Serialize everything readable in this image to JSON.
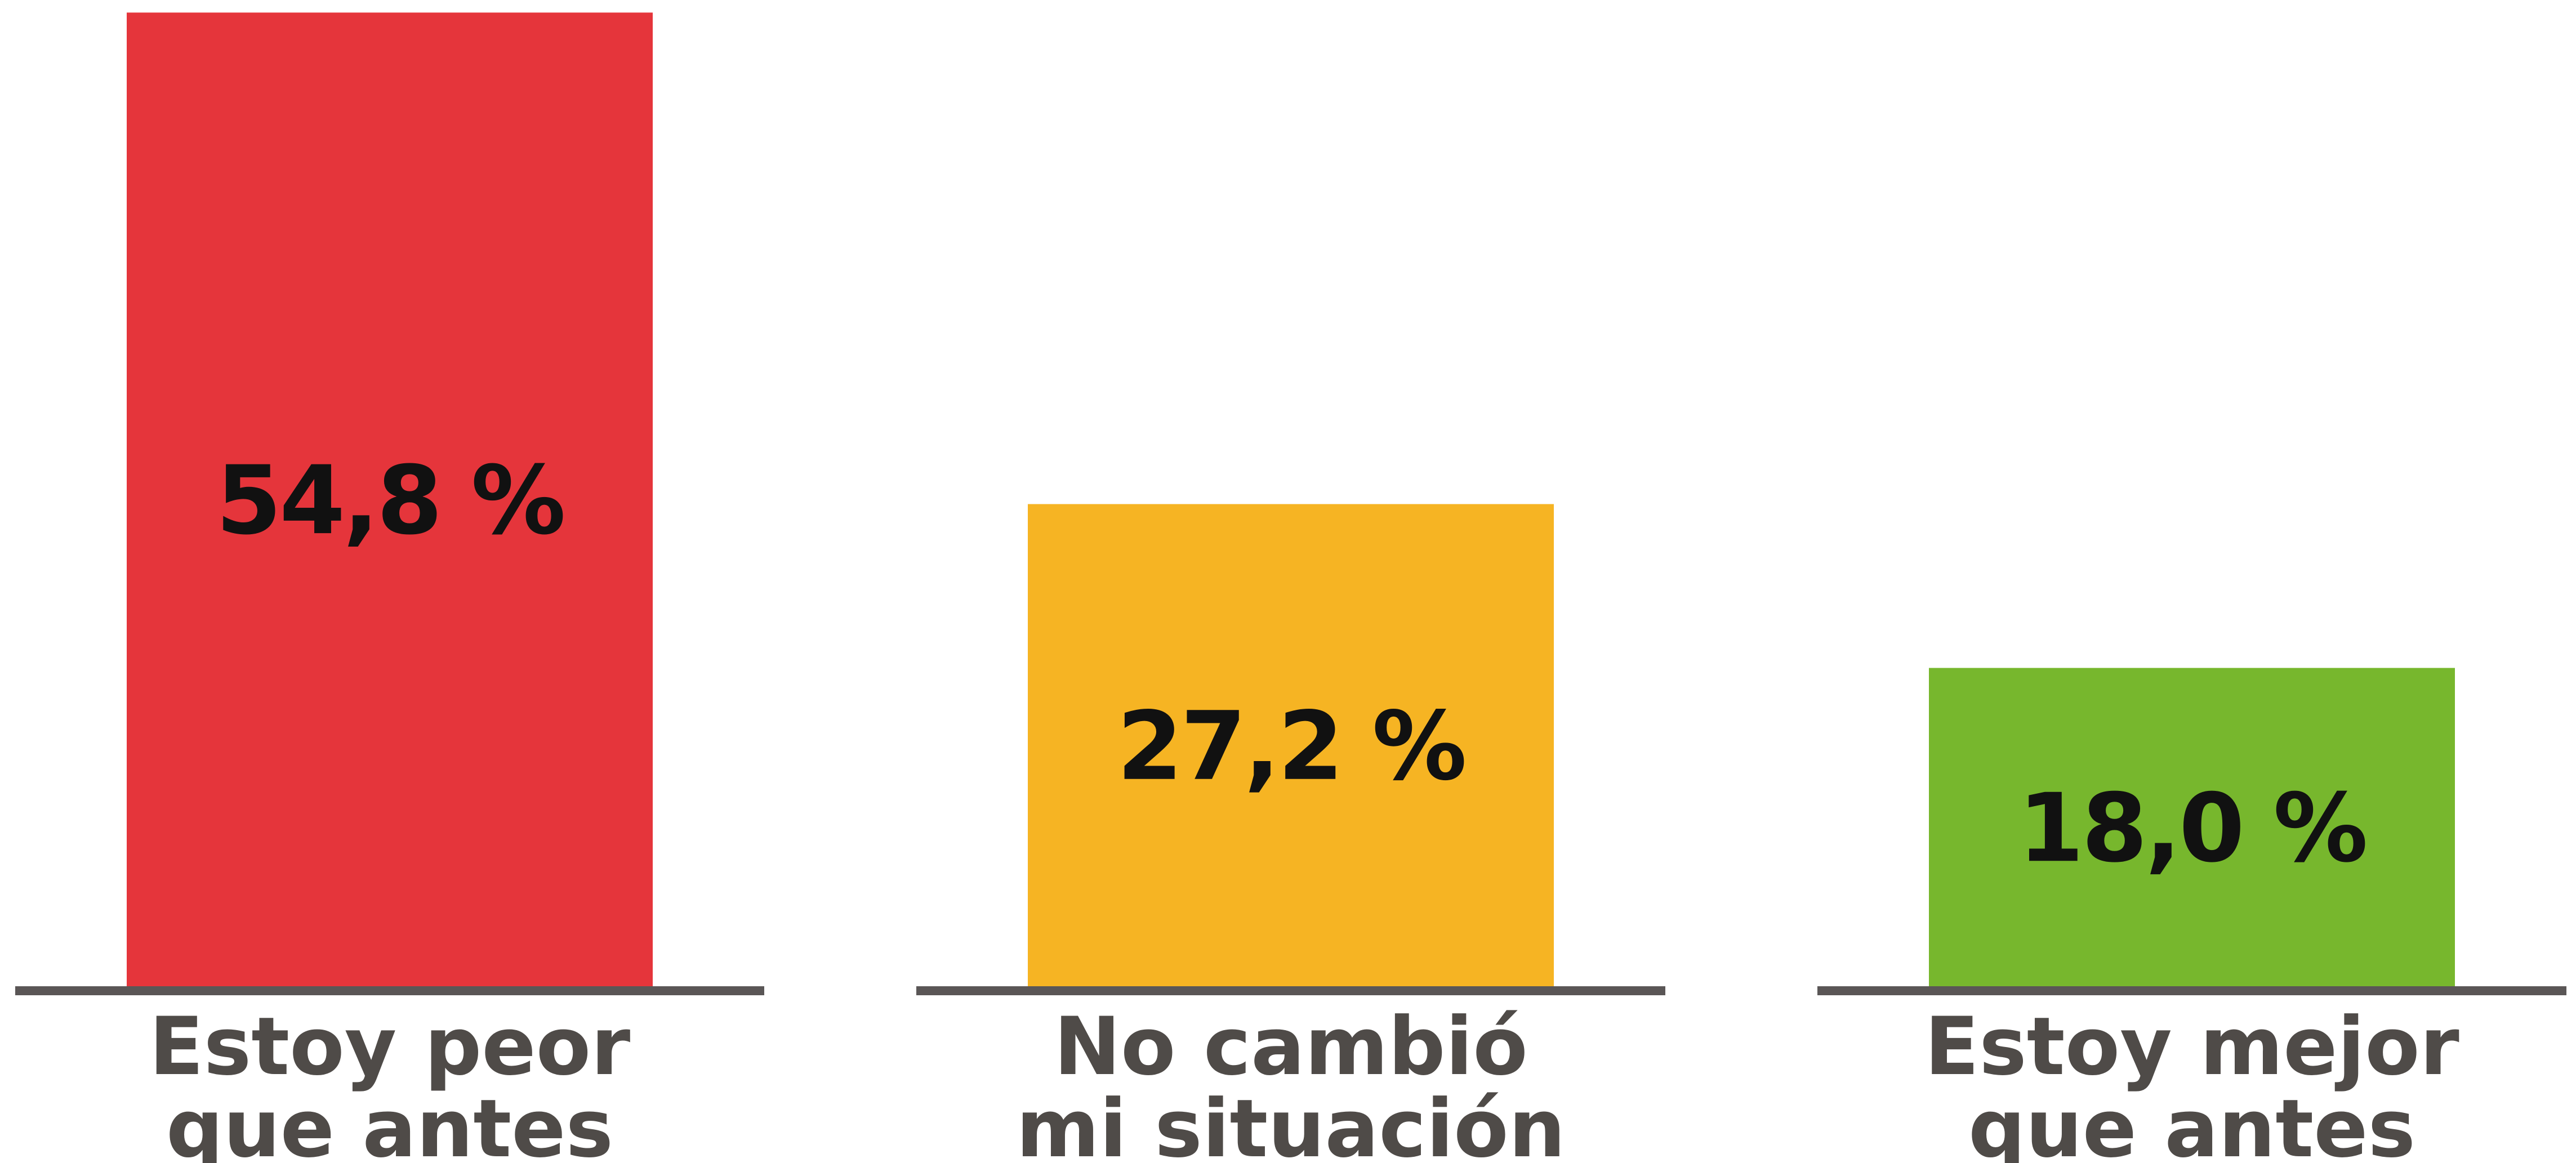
{
  "chart_data": {
    "type": "bar",
    "title": "",
    "xlabel": "",
    "ylabel": "",
    "ylim": [
      0,
      55
    ],
    "grid": false,
    "legend": "none",
    "unit": "%",
    "categories": [
      [
        "Estoy peor",
        "que antes"
      ],
      [
        "No cambió",
        "mi situación"
      ],
      [
        "Estoy mejor",
        "que antes"
      ]
    ],
    "values": [
      54.8,
      27.2,
      18.0
    ],
    "value_labels": [
      "54,8 %",
      "27,2 %",
      "18,0 %"
    ],
    "colors": [
      "#e5353b",
      "#f6b423",
      "#77b72d"
    ],
    "baseline_color": "#5a5656",
    "text_color": "#111111",
    "label_color": "#4f4b48"
  }
}
